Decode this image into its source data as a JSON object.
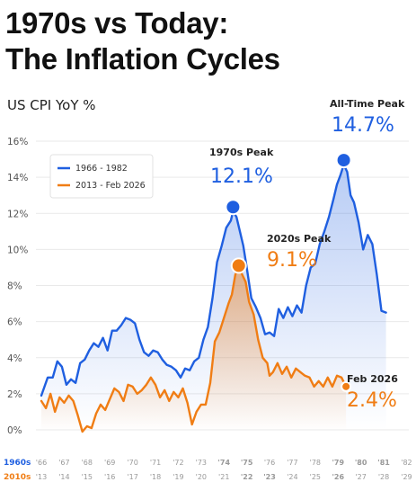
{
  "title_line1": "1970s vs Today:",
  "title_line2": "The Inflation Cycles",
  "chart_data": {
    "type": "line",
    "ylabel": "US CPI YoY %",
    "ylim": [
      0,
      16
    ],
    "yticks": [
      "0%",
      "2%",
      "4%",
      "6%",
      "8%",
      "10%",
      "12%",
      "14%",
      "16%"
    ],
    "grid": true,
    "legend_position": "top-left",
    "series": [
      {
        "name": "1966 - 1982",
        "color": "#1f5fe0",
        "fill": "gradient",
        "values": [
          [
            0.0,
            1.9
          ],
          [
            0.28,
            2.9
          ],
          [
            0.5,
            2.9
          ],
          [
            0.7,
            3.8
          ],
          [
            0.9,
            3.5
          ],
          [
            1.1,
            2.5
          ],
          [
            1.3,
            2.8
          ],
          [
            1.5,
            2.6
          ],
          [
            1.7,
            3.7
          ],
          [
            1.9,
            3.9
          ],
          [
            2.1,
            4.4
          ],
          [
            2.3,
            4.8
          ],
          [
            2.5,
            4.6
          ],
          [
            2.7,
            5.1
          ],
          [
            2.9,
            4.4
          ],
          [
            3.1,
            5.5
          ],
          [
            3.3,
            5.5
          ],
          [
            3.5,
            5.8
          ],
          [
            3.7,
            6.2
          ],
          [
            3.9,
            6.1
          ],
          [
            4.1,
            5.9
          ],
          [
            4.3,
            5.0
          ],
          [
            4.5,
            4.3
          ],
          [
            4.7,
            4.1
          ],
          [
            4.9,
            4.4
          ],
          [
            5.1,
            4.3
          ],
          [
            5.3,
            3.9
          ],
          [
            5.5,
            3.6
          ],
          [
            5.7,
            3.5
          ],
          [
            5.9,
            3.3
          ],
          [
            6.1,
            2.9
          ],
          [
            6.3,
            3.4
          ],
          [
            6.5,
            3.3
          ],
          [
            6.7,
            3.8
          ],
          [
            6.9,
            4.0
          ],
          [
            7.1,
            5.0
          ],
          [
            7.3,
            5.7
          ],
          [
            7.5,
            7.3
          ],
          [
            7.7,
            9.3
          ],
          [
            7.9,
            10.2
          ],
          [
            8.1,
            11.2
          ],
          [
            8.3,
            11.6
          ],
          [
            8.4,
            12.1
          ],
          [
            8.55,
            11.8
          ],
          [
            8.7,
            11.0
          ],
          [
            8.85,
            10.2
          ],
          [
            9.0,
            9.0
          ],
          [
            9.2,
            7.3
          ],
          [
            9.4,
            6.8
          ],
          [
            9.6,
            6.2
          ],
          [
            9.8,
            5.3
          ],
          [
            10.0,
            5.4
          ],
          [
            10.2,
            5.2
          ],
          [
            10.4,
            6.7
          ],
          [
            10.6,
            6.2
          ],
          [
            10.8,
            6.8
          ],
          [
            11.0,
            6.3
          ],
          [
            11.2,
            6.9
          ],
          [
            11.4,
            6.5
          ],
          [
            11.6,
            8.0
          ],
          [
            11.8,
            9.0
          ],
          [
            12.0,
            9.2
          ],
          [
            12.2,
            10.3
          ],
          [
            12.4,
            11.0
          ],
          [
            12.6,
            11.8
          ],
          [
            12.8,
            12.8
          ],
          [
            12.95,
            13.6
          ],
          [
            13.1,
            14.1
          ],
          [
            13.25,
            14.7
          ],
          [
            13.4,
            14.3
          ],
          [
            13.55,
            13.0
          ],
          [
            13.7,
            12.6
          ],
          [
            13.9,
            11.5
          ],
          [
            14.1,
            10.0
          ],
          [
            14.3,
            10.8
          ],
          [
            14.5,
            10.3
          ],
          [
            14.7,
            8.6
          ],
          [
            14.9,
            6.6
          ],
          [
            15.1,
            6.5
          ]
        ]
      },
      {
        "name": "2013 - Feb 2026",
        "color": "#f07d14",
        "fill": "gradient",
        "values": [
          [
            0.0,
            1.6
          ],
          [
            0.2,
            1.2
          ],
          [
            0.4,
            2.0
          ],
          [
            0.6,
            1.0
          ],
          [
            0.8,
            1.8
          ],
          [
            1.0,
            1.5
          ],
          [
            1.2,
            1.9
          ],
          [
            1.4,
            1.6
          ],
          [
            1.6,
            0.8
          ],
          [
            1.8,
            -0.1
          ],
          [
            2.0,
            0.2
          ],
          [
            2.2,
            0.1
          ],
          [
            2.4,
            0.9
          ],
          [
            2.6,
            1.4
          ],
          [
            2.8,
            1.1
          ],
          [
            3.0,
            1.7
          ],
          [
            3.2,
            2.3
          ],
          [
            3.4,
            2.1
          ],
          [
            3.6,
            1.6
          ],
          [
            3.8,
            2.5
          ],
          [
            4.0,
            2.4
          ],
          [
            4.2,
            2.0
          ],
          [
            4.4,
            2.2
          ],
          [
            4.6,
            2.5
          ],
          [
            4.8,
            2.9
          ],
          [
            5.0,
            2.5
          ],
          [
            5.2,
            1.8
          ],
          [
            5.4,
            2.2
          ],
          [
            5.6,
            1.6
          ],
          [
            5.8,
            2.1
          ],
          [
            6.0,
            1.8
          ],
          [
            6.2,
            2.3
          ],
          [
            6.4,
            1.5
          ],
          [
            6.6,
            0.3
          ],
          [
            6.8,
            1.0
          ],
          [
            7.0,
            1.4
          ],
          [
            7.2,
            1.4
          ],
          [
            7.4,
            2.6
          ],
          [
            7.6,
            4.9
          ],
          [
            7.8,
            5.4
          ],
          [
            8.0,
            6.2
          ],
          [
            8.2,
            7.0
          ],
          [
            8.35,
            7.5
          ],
          [
            8.5,
            8.6
          ],
          [
            8.65,
            9.1
          ],
          [
            8.8,
            8.6
          ],
          [
            8.95,
            8.2
          ],
          [
            9.1,
            7.1
          ],
          [
            9.3,
            6.4
          ],
          [
            9.5,
            5.0
          ],
          [
            9.7,
            4.0
          ],
          [
            9.9,
            3.7
          ],
          [
            10.0,
            3.0
          ],
          [
            10.15,
            3.2
          ],
          [
            10.35,
            3.7
          ],
          [
            10.55,
            3.1
          ],
          [
            10.75,
            3.5
          ],
          [
            10.95,
            2.9
          ],
          [
            11.15,
            3.4
          ],
          [
            11.35,
            3.2
          ],
          [
            11.55,
            3.0
          ],
          [
            11.75,
            2.9
          ],
          [
            11.95,
            2.4
          ],
          [
            12.15,
            2.7
          ],
          [
            12.35,
            2.4
          ],
          [
            12.55,
            2.9
          ],
          [
            12.75,
            2.4
          ],
          [
            12.95,
            3.0
          ],
          [
            13.15,
            2.9
          ],
          [
            13.35,
            2.4
          ]
        ]
      }
    ],
    "annotations": [
      {
        "label": "1970s Peak",
        "value": "12.1%",
        "x": 8.4,
        "y": 12.1,
        "series": 0
      },
      {
        "label": "All-Time Peak",
        "value": "14.7%",
        "x": 13.25,
        "y": 14.7,
        "series": 0
      },
      {
        "label": "2020s Peak",
        "value": "9.1%",
        "x": 8.65,
        "y": 9.1,
        "series": 1
      },
      {
        "label": "Feb 2026",
        "value": "2.4%",
        "x": 13.35,
        "y": 2.4,
        "series": 1
      }
    ],
    "x_axis_rows": [
      {
        "label": "1960s",
        "color": "#1f5fe0",
        "ticks": [
          "'66",
          "'67",
          "'68",
          "'69",
          "'70",
          "'71",
          "'72",
          "'73",
          "'74",
          "'75",
          "'76",
          "'77",
          "'78",
          "'79",
          "'80",
          "'81",
          "'82"
        ],
        "highlight": [
          "'74",
          "'75",
          "'79",
          "'80",
          "'81"
        ]
      },
      {
        "label": "2010s",
        "color": "#f07d14",
        "ticks": [
          "'13",
          "'14",
          "'15",
          "'16",
          "'17",
          "'18",
          "'19",
          "'20",
          "'21",
          "'22",
          "'23",
          "'24",
          "'25",
          "'26",
          "'27",
          "'28",
          "'29"
        ],
        "highlight": [
          "'22",
          "'23",
          "'26"
        ]
      }
    ]
  }
}
